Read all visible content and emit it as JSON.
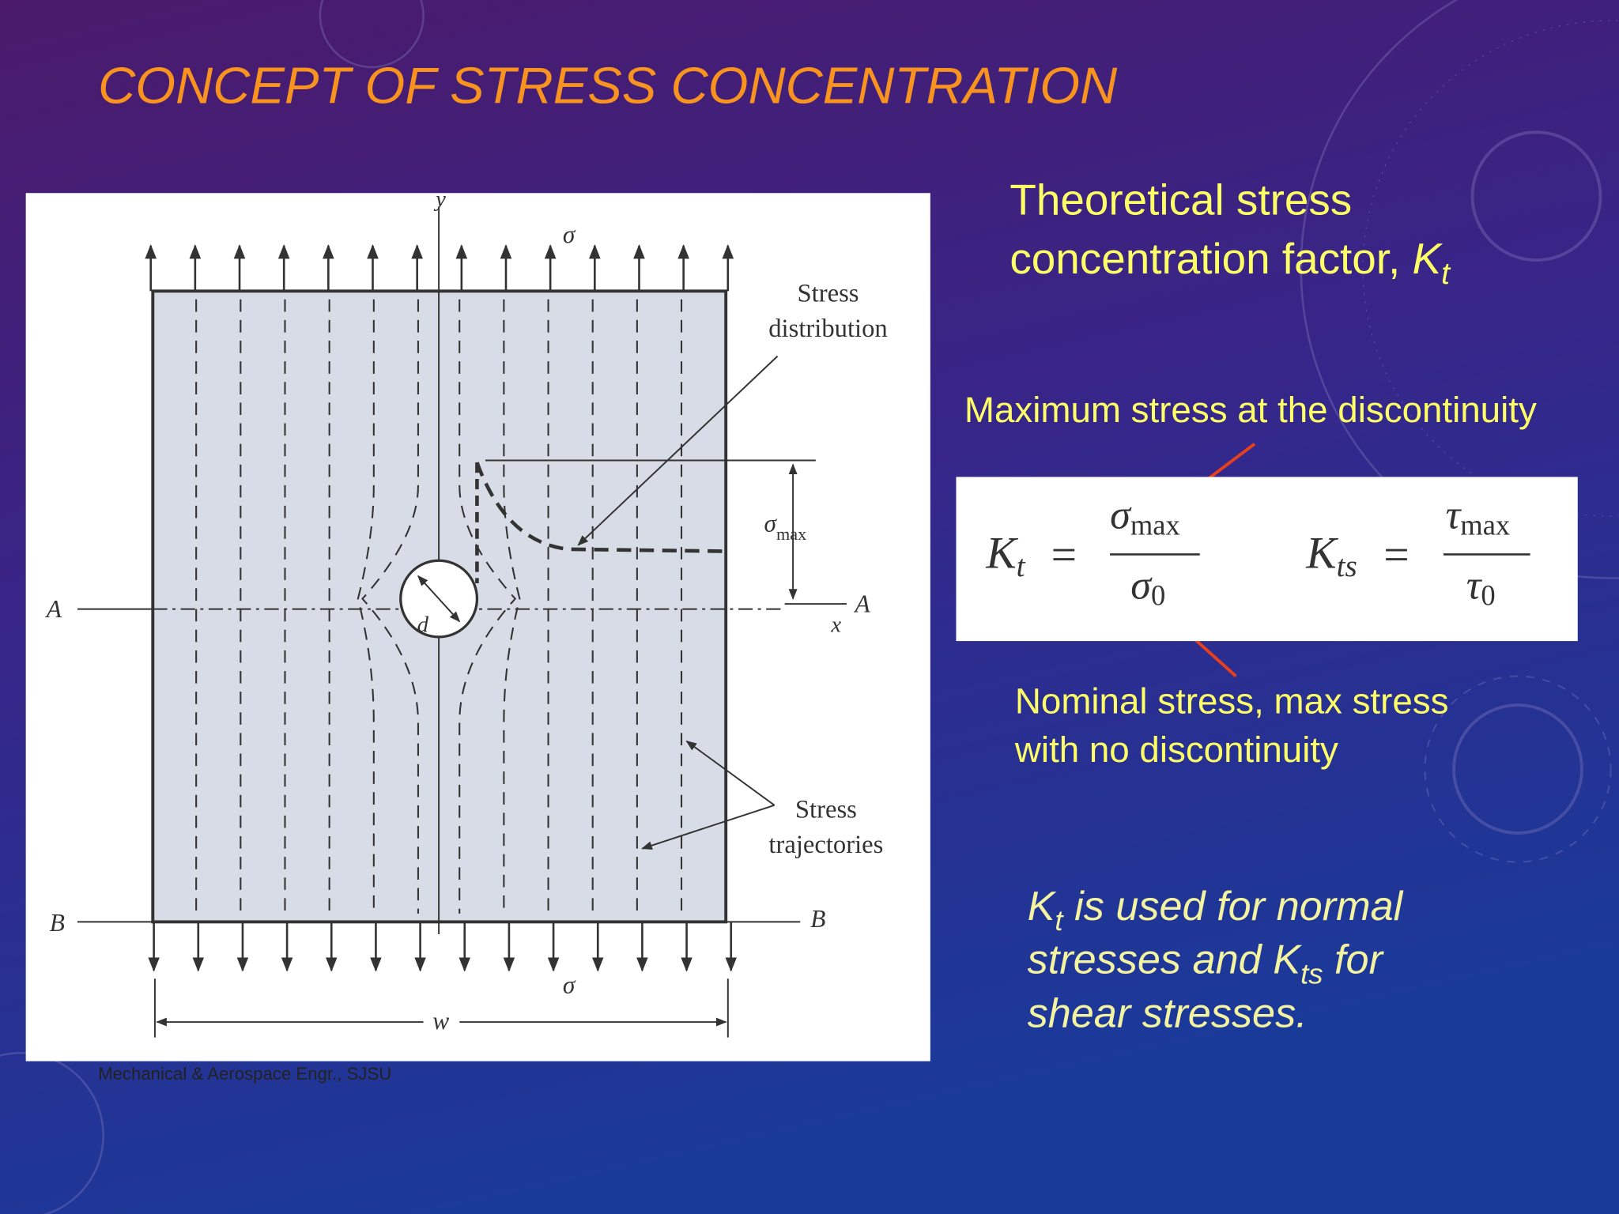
{
  "header": {
    "title": "CONCEPT OF STRESS CONCENTRATION"
  },
  "figure": {
    "y_axis": "y",
    "x_axis": "x",
    "sigma_top": "σ",
    "sigma_bottom": "σ",
    "stress_distribution": [
      "Stress",
      "distribution"
    ],
    "sigma_max": {
      "symbol": "σ",
      "subscript": "max"
    },
    "section_a": [
      "A",
      "A"
    ],
    "section_b": [
      "B",
      "B"
    ],
    "diameter": "d",
    "width": "w",
    "stress_trajectories": [
      "Stress",
      "trajectories"
    ]
  },
  "definition": {
    "lines": [
      "Theoretical stress",
      "concentration factor, "
    ],
    "symbol": "K",
    "subscript": "t"
  },
  "formula": {
    "left": {
      "symbol": "K",
      "subscript": "t",
      "equals": "=",
      "numerator": {
        "symbol": "σ",
        "subscript": "max"
      },
      "denominator": {
        "symbol": "σ",
        "subscript": "0"
      }
    },
    "right": {
      "symbol": "K",
      "subscript": "ts",
      "equals": "=",
      "numerator": {
        "symbol": "τ",
        "subscript": "max"
      },
      "denominator": {
        "symbol": "τ",
        "subscript": "0"
      }
    }
  },
  "annotations": {
    "maximum": "Maximum stress at the discontinuity",
    "nominal": [
      "Nominal stress, max stress",
      "with no discontinuity"
    ]
  },
  "note": {
    "line1": {
      "symbol": "K",
      "subscript": "t",
      "text": " is used for normal"
    },
    "line2": {
      "text": "stresses and K",
      "subscript": "ts",
      "tail": " for"
    },
    "line3": "shear stresses."
  },
  "footer": "Mechanical & Aerospace Engr., SJSU"
}
